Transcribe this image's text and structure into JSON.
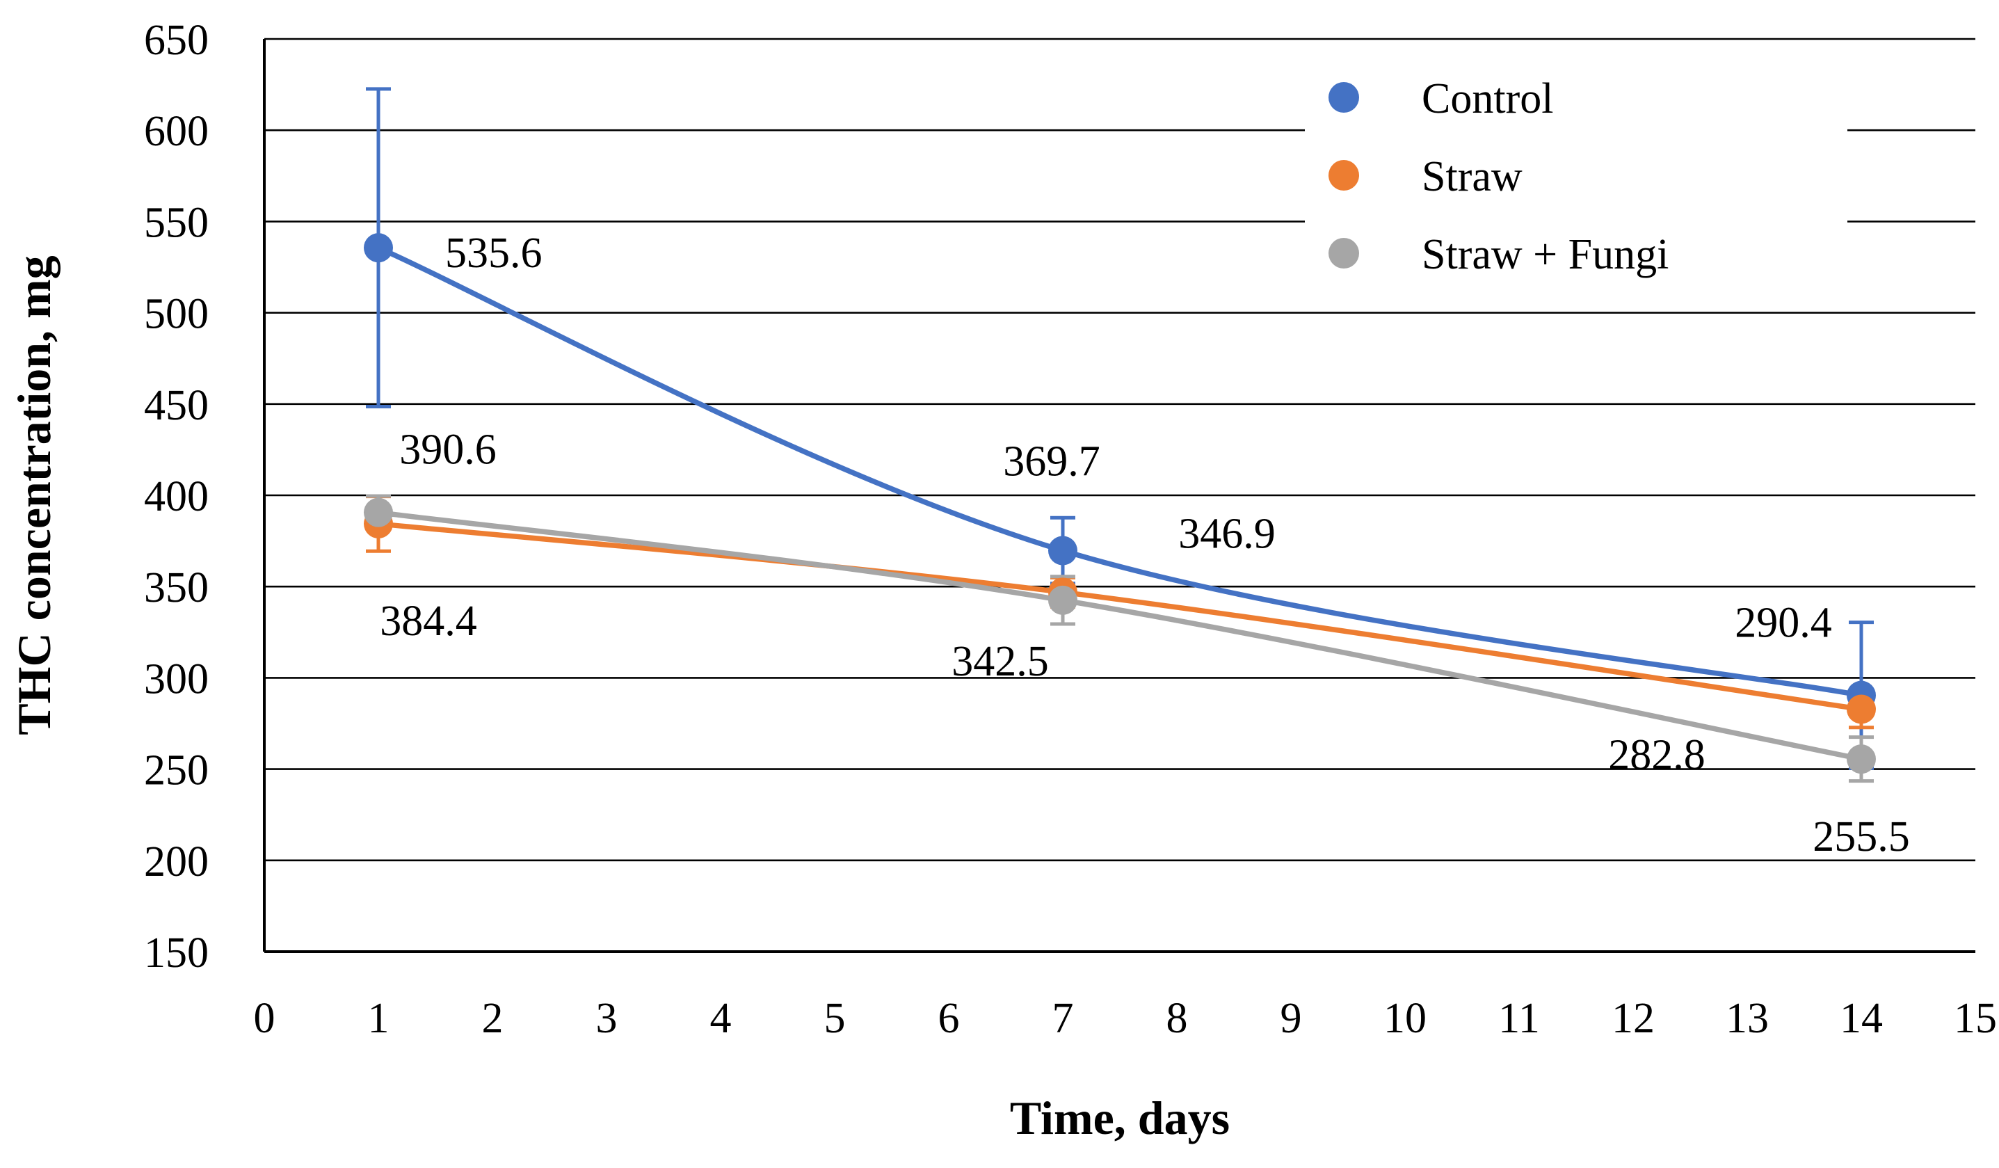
{
  "chart_data": {
    "type": "line",
    "title": "",
    "xlabel": "Time, days",
    "ylabel": "THC concentration, mg",
    "x": [
      1,
      7,
      14
    ],
    "xlim": [
      0,
      15
    ],
    "xticks": [
      0,
      1,
      2,
      3,
      4,
      5,
      6,
      7,
      8,
      9,
      10,
      11,
      12,
      13,
      14,
      15
    ],
    "ylim": [
      150,
      650
    ],
    "yticks": [
      150,
      200,
      250,
      300,
      350,
      400,
      450,
      500,
      550,
      600,
      650
    ],
    "grid": "horizontal-black",
    "line_style": "smoothed",
    "legend_position": "top-right-inside",
    "series": [
      {
        "name": "Control",
        "color": "#4472C4",
        "label_color": "#2E75B6",
        "values": [
          535.6,
          369.7,
          290.4
        ],
        "errors": [
          87,
          18,
          40
        ],
        "labels": [
          "535.6",
          "369.7",
          "290.4"
        ],
        "label_offsets": [
          [
            48,
            14,
            "start"
          ],
          [
            -8,
            -54,
            "middle"
          ],
          [
            -56,
            -42,
            "middle"
          ]
        ]
      },
      {
        "name": "Straw",
        "color": "#ED7D31",
        "label_color": "#ED7D31",
        "values": [
          384.4,
          346.9,
          282.8
        ],
        "errors": [
          15,
          8,
          10
        ],
        "labels": [
          "384.4",
          "346.9",
          "282.8"
        ],
        "label_offsets": [
          [
            36,
            80,
            "middle"
          ],
          [
            118,
            -32,
            "middle"
          ],
          [
            -147,
            43,
            "middle"
          ]
        ]
      },
      {
        "name": "Straw + Fungi",
        "color": "#A6A6A6",
        "label_color": "#A6A6A6",
        "values": [
          390.6,
          342.5,
          255.5
        ],
        "errors": [
          9,
          13,
          12
        ],
        "labels": [
          "390.6",
          "342.5",
          "255.5"
        ],
        "label_offsets": [
          [
            50,
            -35,
            "middle"
          ],
          [
            -45,
            54,
            "middle"
          ],
          [
            0,
            66,
            "middle"
          ]
        ]
      }
    ]
  }
}
